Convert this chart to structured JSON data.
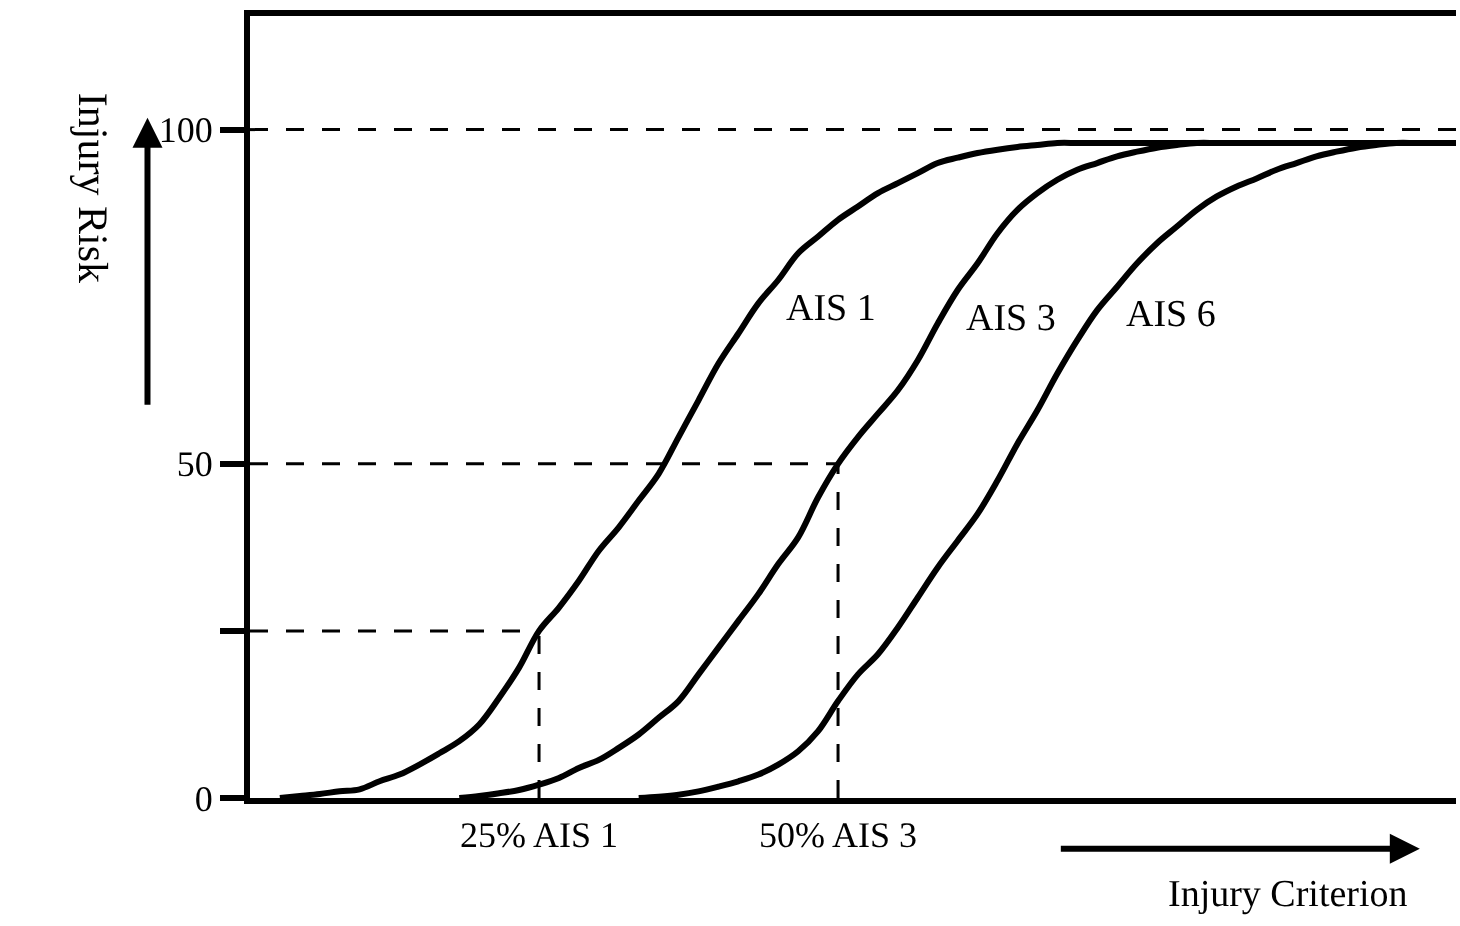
{
  "chart_data": {
    "type": "line",
    "xlabel": "Injury Criterion",
    "ylabel": "Injury Risk",
    "categories": [
      null,
      null,
      null,
      null,
      null,
      null,
      null,
      null,
      null,
      null,
      null,
      null,
      null,
      null,
      "25% AIS 1",
      null,
      null,
      null,
      null,
      null,
      null,
      null,
      null,
      null,
      null,
      null,
      null,
      null,
      null,
      "50% AIS 3",
      null,
      null,
      null,
      null,
      null,
      null,
      null,
      null,
      null,
      null,
      null,
      null,
      null,
      null,
      null,
      null,
      null,
      null,
      null,
      null,
      null,
      null,
      null,
      null,
      null,
      null,
      null,
      null,
      null,
      null,
      null
    ],
    "series": [
      {
        "name": "AIS 1",
        "color": "#000000",
        "values": [
          null,
          0,
          0.3,
          0.6,
          1,
          1.3,
          2.5,
          3.5,
          5,
          6.7,
          8.5,
          11,
          15,
          19.5,
          25,
          28.5,
          32.5,
          37,
          40.5,
          44.5,
          48.5,
          54,
          59.5,
          65,
          69.5,
          74,
          77.5,
          81.5,
          84,
          86.5,
          88.5,
          90.5,
          92,
          93.5,
          95,
          95.8,
          96.5,
          97,
          97.4,
          97.7,
          98,
          98,
          98,
          98,
          98,
          98,
          98,
          98,
          98,
          98,
          98,
          98,
          98,
          98,
          98,
          98,
          98,
          98,
          98,
          98,
          98
        ]
      },
      {
        "name": "AIS 3",
        "color": "#000000",
        "values": [
          null,
          null,
          null,
          null,
          null,
          null,
          null,
          null,
          null,
          null,
          0,
          0.3,
          0.7,
          1.2,
          2,
          3,
          4.5,
          5.7,
          7.5,
          9.5,
          12,
          14.5,
          18.5,
          22.5,
          26.5,
          30.5,
          35,
          39,
          45,
          50,
          54,
          57.5,
          61,
          65.5,
          71,
          76,
          80,
          84.5,
          88,
          90.5,
          92.5,
          94,
          95,
          96,
          96.7,
          97.3,
          97.7,
          98,
          98,
          98,
          98,
          98,
          98,
          98,
          98,
          98,
          98,
          98,
          98,
          98,
          98
        ]
      },
      {
        "name": "AIS 6",
        "color": "#000000",
        "values": [
          null,
          null,
          null,
          null,
          null,
          null,
          null,
          null,
          null,
          null,
          null,
          null,
          null,
          null,
          null,
          null,
          null,
          null,
          null,
          0,
          0.2,
          0.5,
          1,
          1.7,
          2.5,
          3.5,
          5,
          7,
          10,
          14.5,
          18.5,
          21.5,
          25.5,
          30,
          34.5,
          38.5,
          42.5,
          47.5,
          53,
          58,
          63.5,
          68.5,
          73,
          76.5,
          80,
          83,
          85.5,
          88,
          90,
          91.5,
          92.7,
          94,
          95,
          96,
          96.7,
          97.3,
          97.7,
          98,
          98,
          98,
          98
        ]
      }
    ],
    "ylim": [
      0,
      117
    ],
    "yticks": [
      0,
      {
        "value": 25,
        "label": null
      },
      50,
      100
    ],
    "ref_lines": [
      {
        "axis": "y",
        "value": 100,
        "line_style": "dashed",
        "color": "#000000"
      },
      {
        "axis": "y",
        "value": 50,
        "line_style": "dashed",
        "color": "#000000"
      },
      {
        "axis": "x",
        "value": "50% AIS 3",
        "line_style": "dashed",
        "color": "#000000"
      },
      {
        "axis": "y",
        "value": 25,
        "line_style": "dashed",
        "color": "#000000"
      },
      {
        "axis": "x",
        "value": "25% AIS 1",
        "line_style": "dashed",
        "color": "#000000"
      }
    ],
    "legend": false,
    "marker": "none",
    "line_style": "solid"
  }
}
